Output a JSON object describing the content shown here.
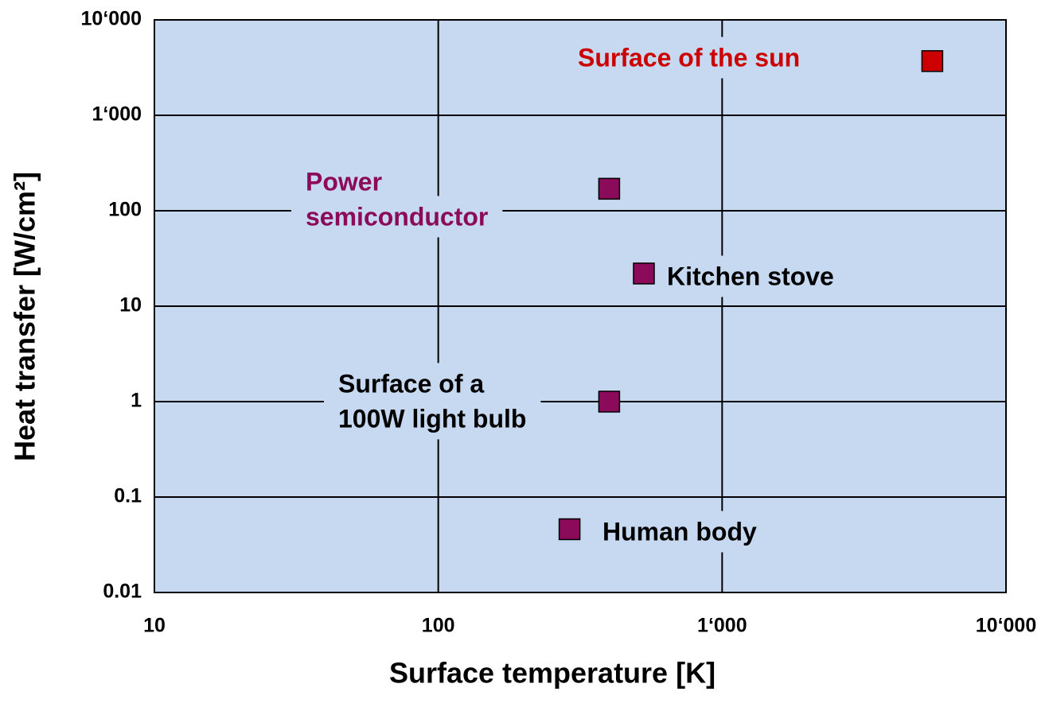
{
  "chart_data": {
    "type": "scatter",
    "xlabel": "Surface temperature [K]",
    "ylabel": "Heat transfer [W/cm²]",
    "xscale": "log",
    "yscale": "log",
    "grid": true,
    "xlim": [
      10,
      10000
    ],
    "ylim": [
      0.01,
      10000
    ],
    "xticks": [
      10,
      100,
      {
        "value": 1000,
        "label": "1‘000"
      },
      {
        "value": 10000,
        "label": "10‘000"
      }
    ],
    "yticks": [
      0.01,
      0.1,
      1,
      10,
      100,
      {
        "value": 1000,
        "label": "1‘000"
      },
      {
        "value": 10000,
        "label": "10‘000"
      }
    ],
    "background": "#c6d9f0",
    "series": [
      {
        "name": "Heat transfer",
        "x": [
          5500,
          400,
          530,
          400,
          290
        ],
        "values": [
          3700,
          170,
          22,
          1,
          0.046
        ],
        "colors": [
          "#cc0000",
          "#8b0a5a",
          "#8b0a5a",
          "#8b0a5a",
          "#8b0a5a"
        ],
        "point_labels": [
          [
            "Surface of the sun"
          ],
          [
            "Power",
            "semiconductor"
          ],
          [
            "Kitchen stove"
          ],
          [
            "Surface of a",
            "100W light bulb"
          ],
          [
            "Human body"
          ]
        ],
        "label_colors": [
          "#cc0000",
          "#8b0a5a",
          "#000000",
          "#000000",
          "#000000"
        ]
      }
    ]
  }
}
